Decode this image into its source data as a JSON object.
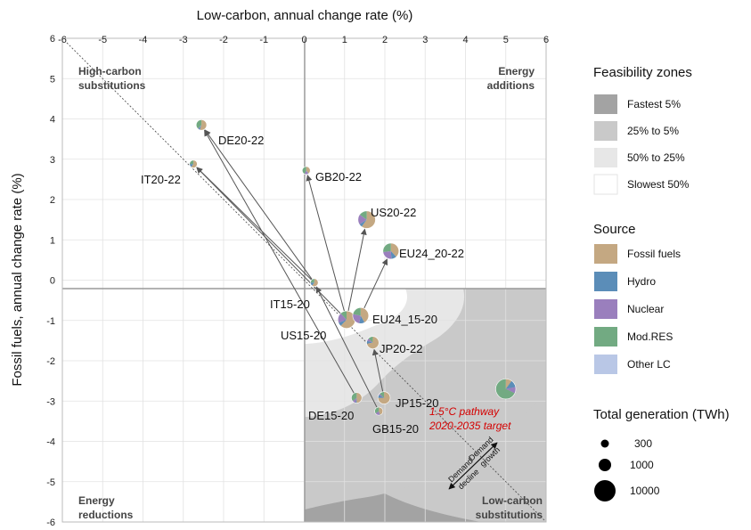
{
  "chart_data": {
    "type": "scatter",
    "xlabel": "Low-carbon, annual change rate (%)",
    "ylabel": "Fossil fuels, annual change rate (%)",
    "xlim": [
      -6,
      6
    ],
    "ylim": [
      -6,
      6
    ],
    "xticks": [
      "-6",
      "-5",
      "-4",
      "-3",
      "-2",
      "-1",
      "0",
      "1",
      "2",
      "3",
      "4",
      "5",
      "6"
    ],
    "yticks": [
      "6",
      "5",
      "4",
      "3",
      "2",
      "1",
      "0",
      "-1",
      "-2",
      "-3",
      "-4",
      "-5",
      "-6"
    ],
    "grid": true,
    "corner_labels": {
      "top_left": [
        "High-carbon",
        "substitutions"
      ],
      "top_right": [
        "Energy",
        "additions"
      ],
      "bottom_left": [
        "Energy",
        "reductions"
      ],
      "bottom_right": [
        "Low-carbon",
        "substitutions"
      ]
    },
    "points": [
      {
        "label": "DE20-22",
        "x": -2.55,
        "y": 3.85,
        "twh": 600,
        "mix": [
          0.55,
          0.05,
          0.02,
          0.38,
          0.0
        ]
      },
      {
        "label": "IT20-22",
        "x": -2.75,
        "y": 2.88,
        "twh": 280,
        "mix": [
          0.6,
          0.15,
          0.0,
          0.25,
          0.0
        ]
      },
      {
        "label": "GB20-22",
        "x": 0.05,
        "y": 2.72,
        "twh": 300,
        "mix": [
          0.4,
          0.02,
          0.15,
          0.43,
          0.0
        ]
      },
      {
        "label": "US20-22",
        "x": 1.55,
        "y": 1.5,
        "twh": 4300,
        "mix": [
          0.6,
          0.06,
          0.19,
          0.15,
          0.0
        ]
      },
      {
        "label": "EU24_20-22",
        "x": 2.15,
        "y": 0.72,
        "twh": 2800,
        "mix": [
          0.38,
          0.11,
          0.24,
          0.27,
          0.0
        ]
      },
      {
        "label": "IT15-20",
        "x": 0.25,
        "y": -0.06,
        "twh": 280,
        "mix": [
          0.6,
          0.15,
          0.0,
          0.25,
          0.0
        ]
      },
      {
        "label": "US15-20",
        "x": 1.05,
        "y": -0.98,
        "twh": 4200,
        "mix": [
          0.62,
          0.07,
          0.19,
          0.12,
          0.0
        ]
      },
      {
        "label": "EU24_15-20",
        "x": 1.4,
        "y": -0.88,
        "twh": 2800,
        "mix": [
          0.42,
          0.11,
          0.25,
          0.22,
          0.0
        ]
      },
      {
        "label": "JP20-22",
        "x": 1.7,
        "y": -1.55,
        "twh": 1000,
        "mix": [
          0.72,
          0.08,
          0.07,
          0.13,
          0.0
        ]
      },
      {
        "label": "DE15-20",
        "x": 1.3,
        "y": -2.92,
        "twh": 600,
        "mix": [
          0.5,
          0.04,
          0.1,
          0.36,
          0.0
        ]
      },
      {
        "label": "JP15-20",
        "x": 1.98,
        "y": -2.92,
        "twh": 1000,
        "mix": [
          0.75,
          0.08,
          0.04,
          0.13,
          0.0
        ]
      },
      {
        "label": "GB15-20",
        "x": 1.85,
        "y": -3.25,
        "twh": 320,
        "mix": [
          0.45,
          0.02,
          0.18,
          0.35,
          0.0
        ]
      },
      {
        "label": "1.5°C pathway 2020-2035 target",
        "x": 5.0,
        "y": -2.7,
        "twh": 9000,
        "mix": [
          0.1,
          0.12,
          0.1,
          0.68,
          0.0
        ]
      }
    ],
    "arrows": [
      {
        "from": "IT15-20",
        "to": "DE20-22"
      },
      {
        "from": "IT15-20",
        "to": "IT20-22"
      },
      {
        "from": "US15-20",
        "to": "IT20-22"
      },
      {
        "from": "US15-20",
        "to": "GB20-22"
      },
      {
        "from": "US15-20",
        "to": "US20-22"
      },
      {
        "from": "EU24_15-20",
        "to": "EU24_20-22"
      },
      {
        "from": "DE15-20",
        "to": "DE20-22"
      },
      {
        "from": "JP15-20",
        "to": "JP20-22"
      },
      {
        "from": "GB15-20",
        "to": "IT15-20"
      }
    ],
    "target_label": [
      "1.5°C pathway",
      "2020-2035 target"
    ],
    "demand_labels": {
      "growth": [
        "Demand",
        "growth"
      ],
      "decline": [
        "Demand",
        "decline"
      ]
    },
    "legend_feasibility": {
      "title": "Feasibility zones",
      "items": [
        {
          "label": "Fastest 5%",
          "color": "#a3a3a3"
        },
        {
          "label": "25% to 5%",
          "color": "#c9c9c9"
        },
        {
          "label": "50% to 25%",
          "color": "#e7e7e7"
        },
        {
          "label": "Slowest 50%",
          "color": "#ffffff"
        }
      ]
    },
    "legend_source": {
      "title": "Source",
      "items": [
        {
          "label": "Fossil fuels",
          "color": "#c4a882"
        },
        {
          "label": "Hydro",
          "color": "#5b8db8"
        },
        {
          "label": "Nuclear",
          "color": "#9a7fbd"
        },
        {
          "label": "Mod.RES",
          "color": "#72aa82"
        },
        {
          "label": "Other LC",
          "color": "#b9c7e6"
        }
      ]
    },
    "legend_size": {
      "title": "Total generation (TWh)",
      "items": [
        {
          "label": "300",
          "value": 300
        },
        {
          "label": "1000",
          "value": 1000
        },
        {
          "label": "10000",
          "value": 10000
        }
      ]
    }
  }
}
